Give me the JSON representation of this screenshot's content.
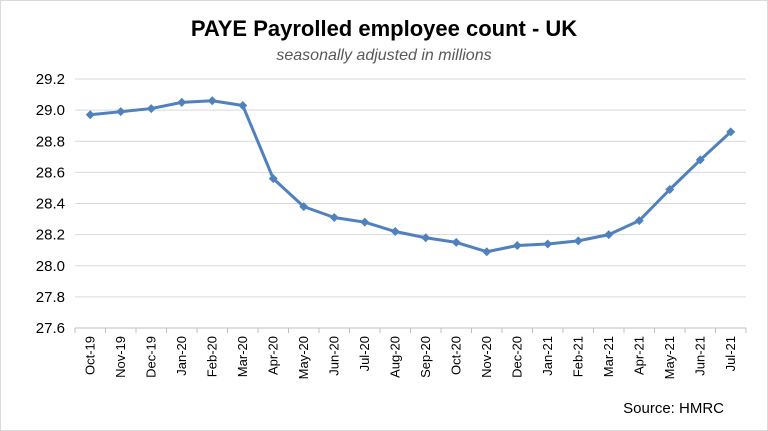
{
  "chart_data": {
    "type": "line",
    "title": "PAYE Payrolled employee count - UK",
    "subtitle": "seasonally adjusted in millions",
    "source": "Source: HMRC",
    "categories": [
      "Oct-19",
      "Nov-19",
      "Dec-19",
      "Jan-20",
      "Feb-20",
      "Mar-20",
      "Apr-20",
      "May-20",
      "Jun-20",
      "Jul-20",
      "Aug-20",
      "Sep-20",
      "Oct-20",
      "Nov-20",
      "Dec-20",
      "Jan-21",
      "Feb-21",
      "Mar-21",
      "Apr-21",
      "May-21",
      "Jun-21",
      "Jul-21"
    ],
    "values": [
      28.97,
      28.99,
      29.01,
      29.05,
      29.06,
      29.03,
      28.56,
      28.38,
      28.31,
      28.28,
      28.22,
      28.18,
      28.15,
      28.09,
      28.13,
      28.14,
      28.16,
      28.2,
      28.29,
      28.49,
      28.68,
      28.86
    ],
    "ylim": [
      27.6,
      29.2
    ],
    "yticks": [
      "27.6",
      "27.8",
      "28.0",
      "28.2",
      "28.4",
      "28.6",
      "28.8",
      "29.0",
      "29.2"
    ],
    "grid": true,
    "legend": "none",
    "colors": {
      "line": "#4F81BD",
      "grid": "#d9d9d9",
      "axis": "#bfbfbf"
    }
  }
}
